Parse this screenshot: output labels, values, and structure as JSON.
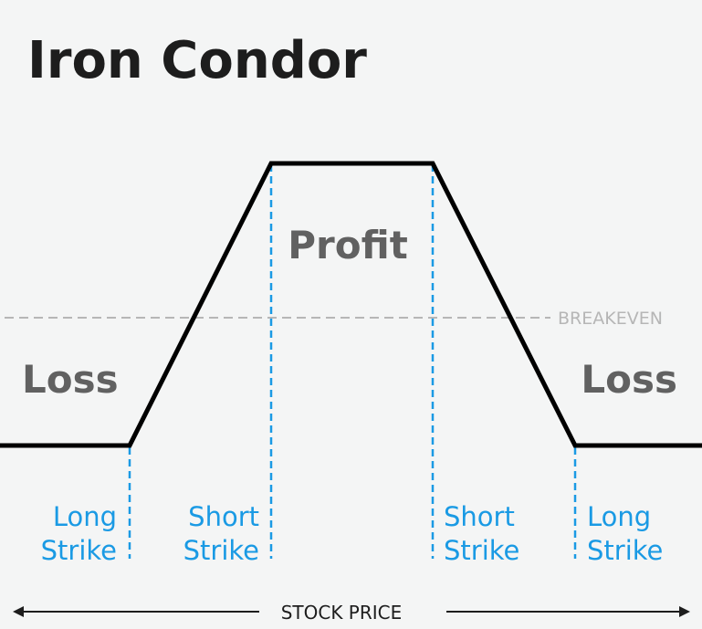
{
  "title": "Iron Condor",
  "regions": {
    "profit": "Profit",
    "loss_left": "Loss",
    "loss_right": "Loss"
  },
  "breakeven_label": "BREAKEVEN",
  "strikes": [
    {
      "line1": "Long",
      "line2": "Strike"
    },
    {
      "line1": "Short",
      "line2": "Strike"
    },
    {
      "line1": "Short",
      "line2": "Strike"
    },
    {
      "line1": "Long",
      "line2": "Strike"
    }
  ],
  "axis_label": "STOCK PRICE",
  "colors": {
    "background": "#f4f5f5",
    "payoff_line": "#000000",
    "strike_line": "#1a9ae4",
    "breakeven_line": "#b6b6b6",
    "title": "#1d1d1d",
    "region_text": "#616161"
  }
}
